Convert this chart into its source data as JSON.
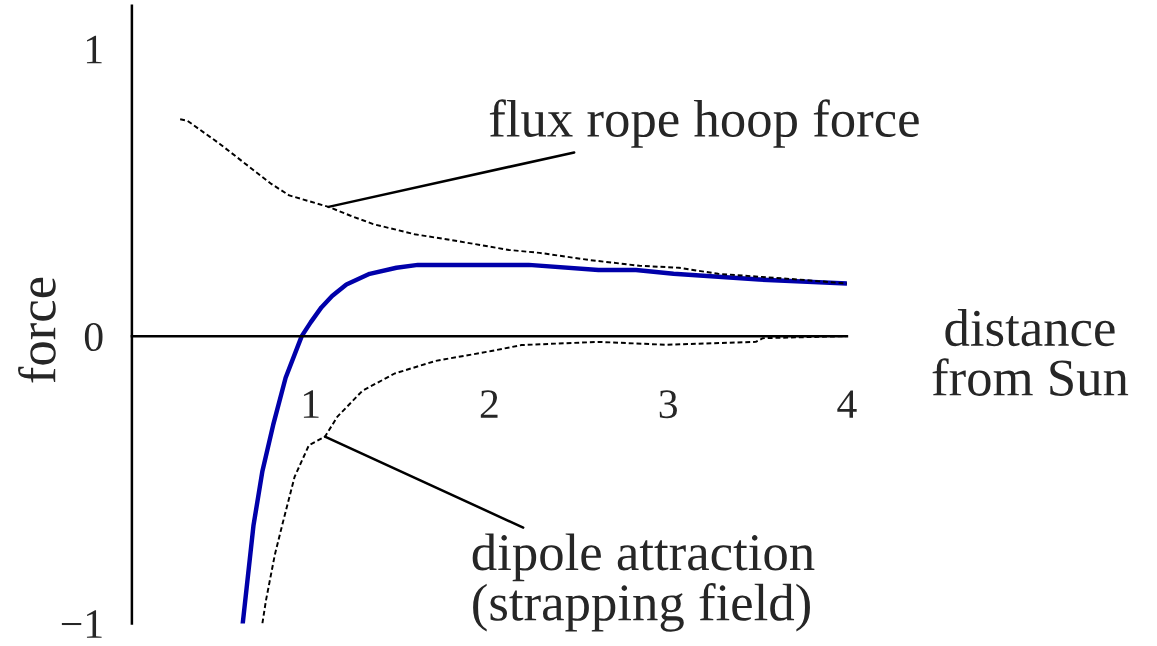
{
  "chart_data": {
    "type": "line",
    "xlabel": "distance\nfrom Sun",
    "ylabel": "force",
    "xlim": [
      0,
      4
    ],
    "ylim": [
      -1,
      1.15
    ],
    "xticks": [
      1,
      2,
      3,
      4
    ],
    "yticks": [
      {
        "value": -1,
        "label": "−1"
      },
      0,
      1
    ],
    "series": [
      {
        "color": "#000000",
        "line_style": "dashed",
        "x": [
          0.27,
          0.31,
          0.49,
          0.78,
          0.88,
          1.1,
          1.22,
          1.35,
          1.58,
          1.83,
          2.11,
          2.28,
          2.56,
          2.84,
          3.06,
          3.28,
          3.73,
          4.0
        ],
        "values": [
          0.755,
          0.75,
          0.67,
          0.53,
          0.49,
          0.45,
          0.42,
          0.39,
          0.355,
          0.33,
          0.3,
          0.29,
          0.265,
          0.245,
          0.238,
          0.217,
          0.197,
          0.183
        ]
      },
      {
        "color": "#0000aa",
        "line_style": "solid",
        "x": [
          0.62,
          0.68,
          0.73,
          0.79,
          0.86,
          0.95,
          1.0,
          1.06,
          1.12,
          1.2,
          1.33,
          1.48,
          1.6,
          2.22,
          2.61,
          2.82,
          3.03,
          3.51,
          4.0
        ],
        "values": [
          -1.0,
          -0.66,
          -0.47,
          -0.31,
          -0.145,
          0.0,
          0.048,
          0.1,
          0.14,
          0.18,
          0.217,
          0.238,
          0.248,
          0.248,
          0.23,
          0.23,
          0.217,
          0.197,
          0.183
        ]
      },
      {
        "color": "#000000",
        "line_style": "dashed",
        "x": [
          0.73,
          0.75,
          0.8,
          0.84,
          0.91,
          0.99,
          1.08,
          1.15,
          1.29,
          1.47,
          1.7,
          2.01,
          2.18,
          2.61,
          2.99,
          3.49,
          3.53,
          4.0
        ],
        "values": [
          -1.0,
          -0.92,
          -0.76,
          -0.66,
          -0.49,
          -0.38,
          -0.35,
          -0.28,
          -0.19,
          -0.13,
          -0.086,
          -0.052,
          -0.031,
          -0.02,
          -0.03,
          -0.02,
          -0.007,
          0.0
        ]
      }
    ],
    "annotations": [
      {
        "text": "flux rope hoop force",
        "x": 1.1,
        "y": 0.45
      },
      {
        "text": "dipole attraction\n(strapping field)",
        "x": 1.08,
        "y": -0.35
      }
    ]
  }
}
